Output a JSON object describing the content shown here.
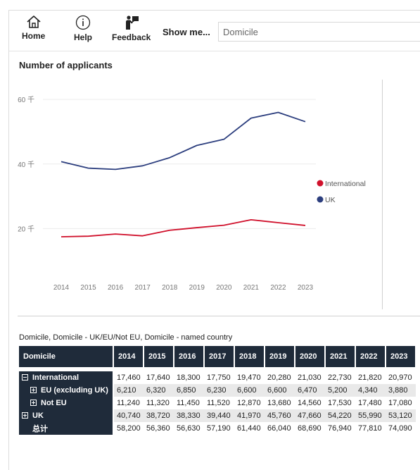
{
  "toolbar": {
    "home_label": "Home",
    "help_label": "Help",
    "feedback_label": "Feedback",
    "show_me_label": "Show me...",
    "domicile_select_value": "Domicile"
  },
  "chart": {
    "title": "Number of applicants",
    "legend": [
      "International",
      "UK"
    ],
    "y_tick_labels": [
      "60 千",
      "40 千",
      "20 千"
    ],
    "x_tick_labels": [
      "2014",
      "2015",
      "2016",
      "2017",
      "2018",
      "2019",
      "2020",
      "2021",
      "2022",
      "2023"
    ]
  },
  "chart_data": {
    "type": "line",
    "title": "Number of applicants",
    "x": [
      2014,
      2015,
      2016,
      2017,
      2018,
      2019,
      2020,
      2021,
      2022,
      2023
    ],
    "series": [
      {
        "name": "International",
        "color": "#d0102b",
        "values": [
          17460,
          17640,
          18300,
          17750,
          19470,
          20280,
          21030,
          22730,
          21820,
          20970
        ]
      },
      {
        "name": "UK",
        "color": "#2c3e7e",
        "values": [
          40740,
          38720,
          38330,
          39440,
          41970,
          45760,
          47660,
          54220,
          55990,
          53120
        ]
      }
    ],
    "ylim": [
      12000,
      62000
    ],
    "y_ticks": [
      20000,
      40000,
      60000
    ],
    "grid": true,
    "legend_position": "right"
  },
  "table": {
    "title": "Domicile, Domicile - UK/EU/Not EU, Domicile - named country",
    "header_first": "Domicile",
    "years": [
      "2014",
      "2015",
      "2016",
      "2017",
      "2018",
      "2019",
      "2020",
      "2021",
      "2022",
      "2023"
    ],
    "rows": [
      {
        "label": "International",
        "indent": 0,
        "expander": "minus",
        "shade": false,
        "values": [
          "17,460",
          "17,640",
          "18,300",
          "17,750",
          "19,470",
          "20,280",
          "21,030",
          "22,730",
          "21,820",
          "20,970"
        ]
      },
      {
        "label": "EU (excluding UK)",
        "indent": 1,
        "expander": "plus",
        "shade": true,
        "values": [
          "6,210",
          "6,320",
          "6,850",
          "6,230",
          "6,600",
          "6,600",
          "6,470",
          "5,200",
          "4,340",
          "3,880"
        ]
      },
      {
        "label": "Not EU",
        "indent": 1,
        "expander": "plus",
        "shade": false,
        "values": [
          "11,240",
          "11,320",
          "11,450",
          "11,520",
          "12,870",
          "13,680",
          "14,560",
          "17,530",
          "17,480",
          "17,080"
        ]
      },
      {
        "label": "UK",
        "indent": 0,
        "expander": "plus",
        "shade": true,
        "values": [
          "40,740",
          "38,720",
          "38,330",
          "39,440",
          "41,970",
          "45,760",
          "47,660",
          "54,220",
          "55,990",
          "53,120"
        ]
      },
      {
        "label": "总计",
        "indent": 0,
        "expander": "none",
        "shade": false,
        "values": [
          "58,200",
          "56,360",
          "56,630",
          "57,190",
          "61,440",
          "66,040",
          "68,690",
          "76,940",
          "77,810",
          "74,090"
        ]
      }
    ]
  }
}
